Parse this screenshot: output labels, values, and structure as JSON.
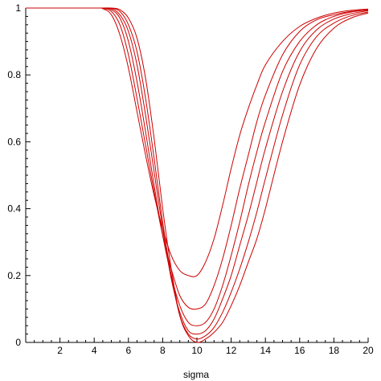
{
  "chart_data": {
    "type": "line",
    "title": "",
    "xlabel": "sigma",
    "ylabel": "",
    "xlim": [
      0,
      20
    ],
    "ylim": [
      0,
      1
    ],
    "x_ticks": [
      "2",
      "4",
      "6",
      "8",
      "10",
      "12",
      "14",
      "16",
      "18",
      "20"
    ],
    "y_ticks": [
      "0",
      "0.2",
      "0.4",
      "0.6",
      "0.8",
      "1"
    ],
    "grid": false,
    "legend": "none",
    "line_color": "#cc0000",
    "series": [
      {
        "x": [
          0,
          4,
          4.5,
          5,
          5.5,
          6,
          6.5,
          7,
          7.5,
          8,
          8.5,
          9,
          9.5,
          10,
          10.5,
          11,
          11.5,
          12,
          12.5,
          13,
          13.5,
          14,
          15,
          16,
          17,
          18,
          19,
          20
        ],
        "values": [
          1,
          1,
          0.998,
          0.98,
          0.92,
          0.82,
          0.69,
          0.56,
          0.44,
          0.34,
          0.26,
          0.215,
          0.2,
          0.2,
          0.24,
          0.31,
          0.41,
          0.52,
          0.62,
          0.7,
          0.77,
          0.83,
          0.9,
          0.945,
          0.97,
          0.985,
          0.993,
          0.997
        ]
      },
      {
        "x": [
          0,
          4,
          4.5,
          5,
          5.5,
          6,
          6.5,
          7,
          7.5,
          8,
          8.5,
          9,
          9.5,
          10,
          10.5,
          11,
          11.5,
          12,
          12.5,
          13,
          13.5,
          14,
          15,
          16,
          17,
          18,
          19,
          20
        ],
        "values": [
          1,
          1,
          0.999,
          0.99,
          0.95,
          0.86,
          0.73,
          0.59,
          0.45,
          0.32,
          0.22,
          0.14,
          0.105,
          0.1,
          0.115,
          0.17,
          0.25,
          0.35,
          0.46,
          0.56,
          0.66,
          0.74,
          0.86,
          0.93,
          0.965,
          0.98,
          0.99,
          0.995
        ]
      },
      {
        "x": [
          0,
          4,
          4.5,
          5,
          5.5,
          6,
          6.5,
          7,
          7.5,
          8,
          8.5,
          9,
          9.5,
          10,
          10.5,
          11,
          11.5,
          12,
          12.5,
          13,
          13.5,
          14,
          15,
          16,
          17,
          18,
          19,
          20
        ],
        "values": [
          1,
          1,
          1,
          0.995,
          0.97,
          0.9,
          0.78,
          0.63,
          0.47,
          0.32,
          0.2,
          0.11,
          0.06,
          0.05,
          0.06,
          0.1,
          0.17,
          0.26,
          0.36,
          0.47,
          0.57,
          0.66,
          0.81,
          0.9,
          0.95,
          0.975,
          0.988,
          0.994
        ]
      },
      {
        "x": [
          0,
          4,
          4.5,
          5,
          5.5,
          6,
          6.5,
          7,
          7.5,
          8,
          8.5,
          9,
          9.5,
          10,
          10.5,
          11,
          11.5,
          12,
          12.5,
          13,
          13.5,
          14,
          15,
          16,
          17,
          18,
          19,
          20
        ],
        "values": [
          1,
          1,
          1,
          0.998,
          0.98,
          0.93,
          0.83,
          0.68,
          0.51,
          0.34,
          0.19,
          0.09,
          0.035,
          0.025,
          0.035,
          0.07,
          0.13,
          0.2,
          0.29,
          0.38,
          0.48,
          0.58,
          0.75,
          0.87,
          0.935,
          0.967,
          0.983,
          0.992
        ]
      },
      {
        "x": [
          0,
          4,
          4.5,
          5,
          5.5,
          6,
          6.5,
          7,
          7.5,
          8,
          8.5,
          9,
          9.5,
          10,
          10.5,
          11,
          11.5,
          12,
          12.5,
          13,
          13.5,
          14,
          15,
          16,
          17,
          18,
          19,
          20
        ],
        "values": [
          1,
          1,
          1,
          0.999,
          0.99,
          0.95,
          0.87,
          0.73,
          0.55,
          0.36,
          0.2,
          0.08,
          0.025,
          0.01,
          0.02,
          0.045,
          0.09,
          0.15,
          0.22,
          0.3,
          0.39,
          0.49,
          0.68,
          0.83,
          0.915,
          0.955,
          0.977,
          0.988
        ]
      },
      {
        "x": [
          0,
          4,
          4.5,
          5,
          5.5,
          6,
          6.5,
          7,
          7.5,
          8,
          8.5,
          9,
          9.5,
          10,
          10.5,
          11,
          11.5,
          12,
          12.5,
          13,
          13.5,
          14,
          15,
          16,
          17,
          18,
          19,
          20
        ],
        "values": [
          1,
          1,
          1,
          1,
          0.995,
          0.97,
          0.91,
          0.79,
          0.61,
          0.4,
          0.22,
          0.08,
          0.02,
          0.0,
          0.01,
          0.03,
          0.06,
          0.11,
          0.17,
          0.24,
          0.31,
          0.4,
          0.6,
          0.77,
          0.88,
          0.94,
          0.97,
          0.985
        ]
      }
    ]
  }
}
